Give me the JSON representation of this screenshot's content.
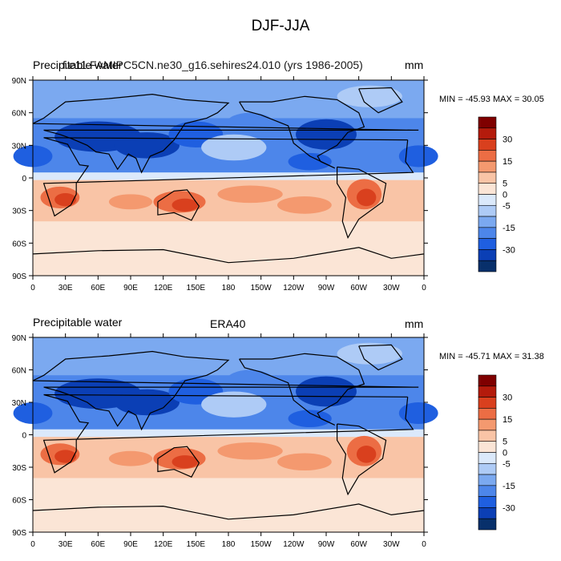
{
  "title": "DJF-JJA",
  "colors": {
    "levels": [
      "#08306b",
      "#0b3fb5",
      "#1f5fe0",
      "#4d86ea",
      "#7ba9f0",
      "#aecbf6",
      "#dbe9fb",
      "#fbe5d6",
      "#f9c4a6",
      "#f4996f",
      "#ec6d44",
      "#d9401e",
      "#b41b0c",
      "#7f0000"
    ],
    "ocean_base": "#f9c4a6",
    "coast": "#000000"
  },
  "colorbar": {
    "labels": [
      "30",
      "15",
      "5",
      "0",
      "-5",
      "-15",
      "-30"
    ]
  },
  "axes": {
    "lat_ticks": [
      "90N",
      "60N",
      "30N",
      "0",
      "30S",
      "60S",
      "90S"
    ],
    "lon_ticks": [
      "0",
      "30E",
      "60E",
      "90E",
      "120E",
      "150E",
      "180",
      "150W",
      "120W",
      "90W",
      "60W",
      "30W",
      "0"
    ]
  },
  "panels": [
    {
      "id": "model",
      "left_title": "Precipitable water",
      "center_title": "b40.20th.track1.1deg.006",
      "overlay_title": "f.e11.FAMIPC5CN.ne30_g16.sehires24.010 (yrs 1986-2005)",
      "units": "mm",
      "minmax": "MIN = -45.93  MAX =  30.05"
    },
    {
      "id": "obs",
      "left_title": "Precipitable water",
      "center_title": "ERA40",
      "units": "mm",
      "minmax": "MIN = -45.71  MAX =  31.38"
    }
  ]
}
